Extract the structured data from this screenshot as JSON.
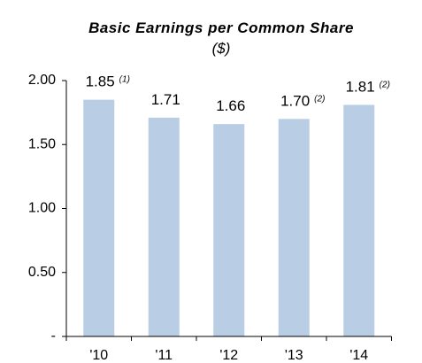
{
  "chart_data": {
    "type": "bar",
    "title": "Basic Earnings per Common Share",
    "title_unit": "($)",
    "categories": [
      "'10",
      "'11",
      "'12",
      "'13",
      "'14"
    ],
    "values": [
      1.85,
      1.71,
      1.66,
      1.7,
      1.81
    ],
    "value_labels": [
      "1.85",
      "1.71",
      "1.66",
      "1.70",
      "1.81"
    ],
    "value_notes": [
      "(1)",
      null,
      null,
      "(2)",
      "(2)"
    ],
    "color": "#b9cde5",
    "ylim": [
      0,
      2
    ],
    "yticks": [
      {
        "value": 0,
        "label": "-"
      },
      {
        "value": 0.5,
        "label": "0.50"
      },
      {
        "value": 1,
        "label": "1.00"
      },
      {
        "value": 1.5,
        "label": "1.50"
      },
      {
        "value": 2,
        "label": "2.00"
      }
    ],
    "grid": false
  }
}
